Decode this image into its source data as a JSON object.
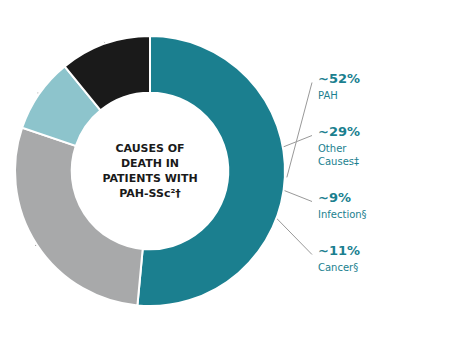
{
  "chart_data": {
    "type": "pie",
    "categories": [
      "PAH",
      "Other Causes‡",
      "Infection§",
      "Cancer§"
    ],
    "values": [
      52,
      29,
      9,
      11
    ],
    "value_labels": [
      "~52%",
      "~29%",
      "~9%",
      "~11%"
    ],
    "colors": [
      "#1b7f8f",
      "#a8a9aa",
      "#8dc4cc",
      "#1a1a1a"
    ],
    "data_labels": true,
    "annotations": [
      "CAUSES OF",
      "DEATH IN",
      "PATIENTS WITH",
      "PAH-SSc²†"
    ]
  }
}
